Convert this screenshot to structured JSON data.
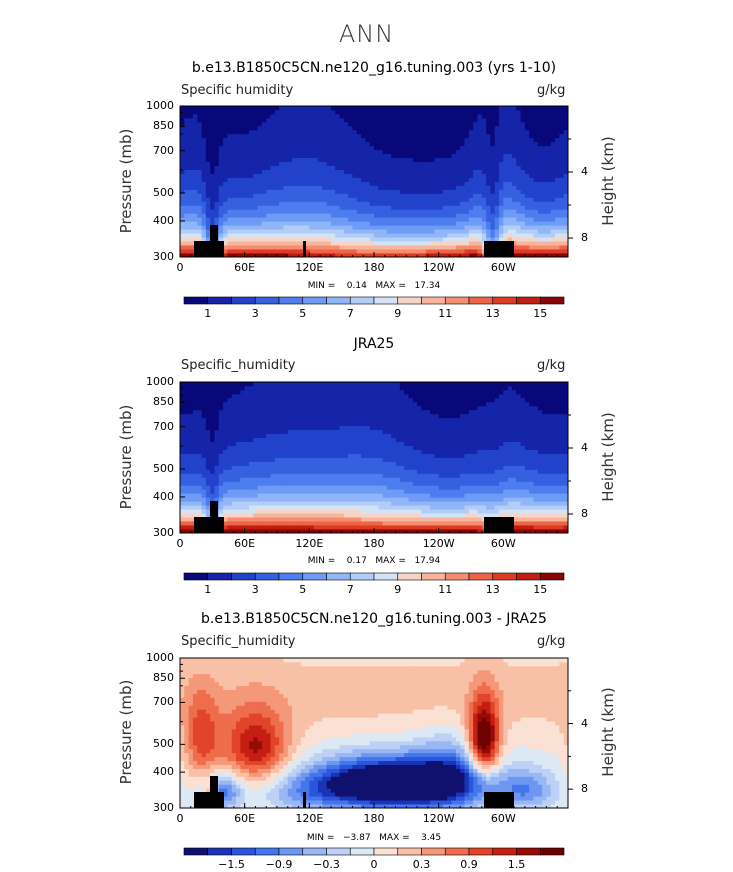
{
  "page_title": "ANN",
  "colors": {
    "seq16": [
      "#08087a",
      "#1524a8",
      "#2342cc",
      "#3560e0",
      "#4e7df0",
      "#6e9bf5",
      "#90b6f8",
      "#b3cdf9",
      "#d4e2f6",
      "#f6d5c6",
      "#f8b49d",
      "#f58d70",
      "#ee6446",
      "#dc3c24",
      "#c01e10",
      "#8a0505"
    ],
    "diff16": [
      "#10106e",
      "#1a34b8",
      "#2a55dc",
      "#4575eb",
      "#6d97f2",
      "#98b7f4",
      "#bcd1f5",
      "#dde8f5",
      "#fbe1d4",
      "#f8c0a7",
      "#f5987a",
      "#ee6d4d",
      "#e14429",
      "#c41f10",
      "#970a06",
      "#6e0000"
    ]
  },
  "shared": {
    "ylabel": "Pressure (mb)",
    "y2label": "Height (km)",
    "units": "g/kg",
    "y_ticks": [
      "300",
      "400",
      "500",
      "700",
      "850",
      "1000"
    ],
    "y2_ticks": [
      "8",
      "4"
    ],
    "x_ticks": [
      "0",
      "60E",
      "120E",
      "180",
      "120W",
      "60W"
    ]
  },
  "chart_data": [
    {
      "type": "heatmap",
      "title": "b.e13.B1850C5CN.ne120_g16.tuning.003 (yrs 1-10)",
      "variable": "Specific humidity",
      "units": "g/kg",
      "xlabel": "",
      "ylabel": "Pressure (mb)",
      "y2label": "Height (km)",
      "x_range": [
        0,
        360
      ],
      "y_range_mb": [
        1000,
        300
      ],
      "stats": "MIN =    0.14   MAX =   17.34",
      "colorbar_labels": [
        "1",
        "3",
        "5",
        "7",
        "9",
        "11",
        "13",
        "15"
      ],
      "min": 0.14,
      "max": 17.34,
      "contour_interval": 1,
      "surface_max_gkg": [
        [
          0,
          13
        ],
        [
          20,
          14.5
        ],
        [
          30,
          8
        ],
        [
          40,
          12
        ],
        [
          60,
          15
        ],
        [
          90,
          16.5
        ],
        [
          110,
          17.3
        ],
        [
          130,
          17
        ],
        [
          160,
          15
        ],
        [
          180,
          14
        ],
        [
          200,
          13
        ],
        [
          240,
          12.5
        ],
        [
          270,
          14
        ],
        [
          285,
          6
        ],
        [
          300,
          11
        ],
        [
          330,
          16.5
        ],
        [
          360,
          13
        ]
      ]
    },
    {
      "type": "heatmap",
      "title": "JRA25",
      "variable": "Specific_humidity",
      "units": "g/kg",
      "xlabel": "",
      "ylabel": "Pressure (mb)",
      "y2label": "Height (km)",
      "x_range": [
        0,
        360
      ],
      "y_range_mb": [
        1000,
        300
      ],
      "stats": "MIN =    0.17   MAX =   17.94",
      "colorbar_labels": [
        "1",
        "3",
        "5",
        "7",
        "9",
        "11",
        "13",
        "15"
      ],
      "min": 0.17,
      "max": 17.94,
      "contour_interval": 1,
      "surface_max_gkg": [
        [
          0,
          15
        ],
        [
          20,
          15.5
        ],
        [
          30,
          10
        ],
        [
          40,
          15
        ],
        [
          60,
          16
        ],
        [
          90,
          17
        ],
        [
          120,
          17.9
        ],
        [
          150,
          17
        ],
        [
          180,
          16
        ],
        [
          210,
          15.5
        ],
        [
          240,
          15
        ],
        [
          280,
          14
        ],
        [
          300,
          15
        ],
        [
          330,
          16
        ],
        [
          360,
          15
        ]
      ]
    },
    {
      "type": "heatmap",
      "title": "b.e13.B1850C5CN.ne120_g16.tuning.003 - JRA25",
      "variable": "Specific_humidity",
      "units": "g/kg",
      "xlabel": "",
      "ylabel": "Pressure (mb)",
      "y2label": "Height (km)",
      "x_range": [
        0,
        360
      ],
      "y_range_mb": [
        1000,
        300
      ],
      "stats": "MIN =   −3.87   MAX =    3.45",
      "colorbar_labels": [
        "−1.5",
        "−0.9",
        "−0.3",
        "0",
        "0.3",
        "0.9",
        "1.5"
      ],
      "min": -3.87,
      "max": 3.45,
      "contour_interval": 0.3
    }
  ]
}
